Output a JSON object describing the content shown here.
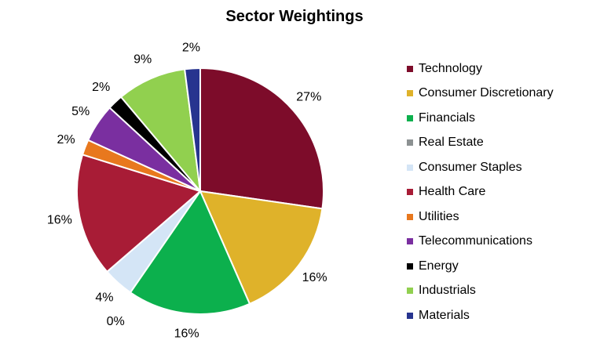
{
  "chart_data": {
    "type": "pie",
    "title": "Sector Weightings",
    "slices": [
      {
        "name": "Technology",
        "value": 27,
        "label": "27%",
        "color": "#7d0c2a"
      },
      {
        "name": "Consumer Discretionary",
        "value": 16,
        "label": "16%",
        "color": "#dfb22a"
      },
      {
        "name": "Financials",
        "value": 16,
        "label": "16%",
        "color": "#0cb04d"
      },
      {
        "name": "Real Estate",
        "value": 0,
        "label": "0%",
        "color": "#8c9192"
      },
      {
        "name": "Consumer Staples",
        "value": 4,
        "label": "4%",
        "color": "#d4e5f6"
      },
      {
        "name": "Health Care",
        "value": 16,
        "label": "16%",
        "color": "#a81c36"
      },
      {
        "name": "Utilities",
        "value": 2,
        "label": "2%",
        "color": "#e8781e"
      },
      {
        "name": "Telecommunications",
        "value": 5,
        "label": "5%",
        "color": "#7a2fa0"
      },
      {
        "name": "Energy",
        "value": 2,
        "label": "2%",
        "color": "#000000"
      },
      {
        "name": "Industrials",
        "value": 9,
        "label": "9%",
        "color": "#91d04f"
      },
      {
        "name": "Materials",
        "value": 2,
        "label": "2%",
        "color": "#27348f"
      }
    ],
    "legend_position": "right"
  }
}
